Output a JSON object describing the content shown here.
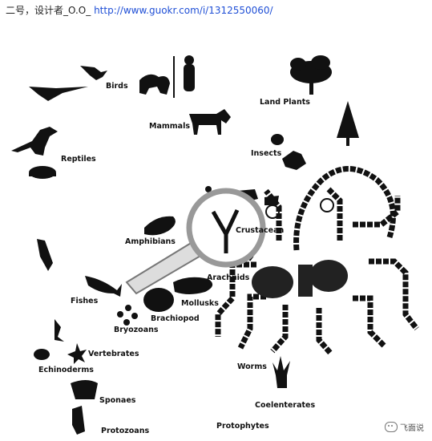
{
  "caption": {
    "text": "二号，设计者_O.O_",
    "link": "http://www.guokr.com/i/1312550060/"
  },
  "labels": {
    "birds": "Birds",
    "mammals": "Mammals",
    "land_plants": "Land Plants",
    "insects": "Insects",
    "reptiles": "Reptiles",
    "crustaceans": "Crustacean",
    "amphibians": "Amphibians",
    "arachnids": "Arachnids",
    "fishes": "Fishes",
    "mollusks": "Mollusks",
    "brachiopod": "Brachiopod",
    "bryozoans": "Bryozoans",
    "vertebrates": "Vertebrates",
    "echinoderms": "Echinoderms",
    "worms": "Worms",
    "sponges": "Sponaes",
    "coelenterates": "Coelenterates",
    "protozoans": "Protozoans",
    "protophytes": "Protophytes"
  },
  "watermark": {
    "text": "飞面说",
    "icon": "wechat-icon"
  },
  "colors": {
    "link": "#1f4fd6",
    "ink": "#111111"
  }
}
